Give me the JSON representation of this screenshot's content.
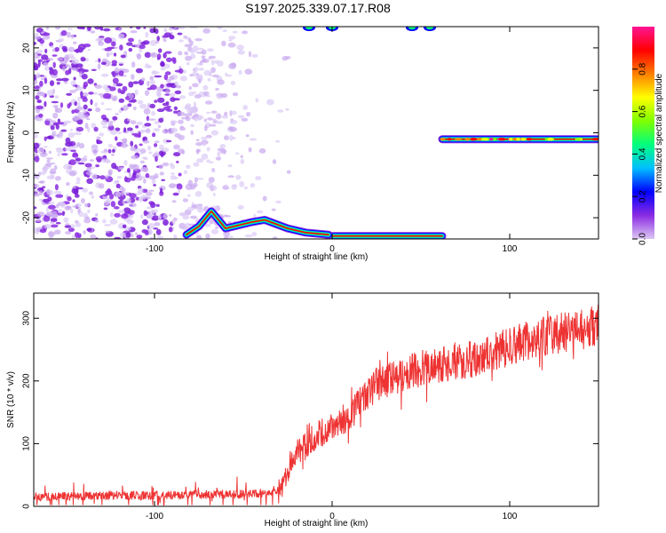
{
  "page_title": "S197.2025.339.07.17.R08",
  "chart_data": [
    {
      "type": "heatmap",
      "xlabel": "Height of straight line (km)",
      "ylabel": "Frequency (Hz)",
      "xlim": [
        -168,
        150
      ],
      "ylim": [
        -25,
        25
      ],
      "x_ticks": [
        -100,
        0,
        100
      ],
      "y_ticks": [
        -20,
        -10,
        0,
        10,
        20
      ],
      "colorbar": {
        "label": "Normalized spectral amplitude",
        "range": [
          0.0,
          1.0
        ],
        "ticks": [
          "0.0",
          "0.2",
          "0.4",
          "0.6",
          "0.8"
        ],
        "stops": [
          "#ddc8f4",
          "#8a2be2",
          "#0000ff",
          "#00bfff",
          "#00ff7f",
          "#7fff00",
          "#ffff00",
          "#ff7f00",
          "#ff0000",
          "#ff1493"
        ]
      },
      "features": [
        {
          "name": "noise-speckle",
          "x_range": [
            -168,
            -38
          ],
          "freq_range": [
            -25,
            25
          ]
        },
        {
          "name": "tone-at-0Hz",
          "x_range": [
            62,
            150
          ],
          "freq_hz": -1.5
        },
        {
          "name": "tone-at-minus-24Hz",
          "x_range": [
            -2,
            62
          ],
          "freq_hz": -24.3
        },
        {
          "name": "chirp",
          "points": [
            [
              -82,
              -24
            ],
            [
              -75,
              -22
            ],
            [
              -68,
              -18.5
            ],
            [
              -60,
              -22.5
            ],
            [
              -45,
              -21
            ],
            [
              -38,
              -20.5
            ],
            [
              -25,
              -22.5
            ],
            [
              -15,
              -23.5
            ],
            [
              -2,
              -24
            ]
          ]
        },
        {
          "name": "top-edge-blobs",
          "x_values": [
            -13,
            0,
            45,
            55
          ]
        }
      ]
    },
    {
      "type": "line",
      "xlabel": "Height of straight line (km)",
      "ylabel": "SNR (10 * v/v)",
      "xlim": [
        -168,
        150
      ],
      "ylim": [
        0,
        340
      ],
      "x_ticks": [
        -100,
        0,
        100
      ],
      "y_ticks": [
        0,
        100,
        200,
        300
      ],
      "color": "#ee3333",
      "trend": [
        [
          -168,
          15
        ],
        [
          -40,
          20
        ],
        [
          -28,
          30
        ],
        [
          -22,
          80
        ],
        [
          -10,
          110
        ],
        [
          10,
          145
        ],
        [
          25,
          195
        ],
        [
          50,
          220
        ],
        [
          80,
          235
        ],
        [
          110,
          265
        ],
        [
          150,
          290
        ]
      ]
    }
  ]
}
